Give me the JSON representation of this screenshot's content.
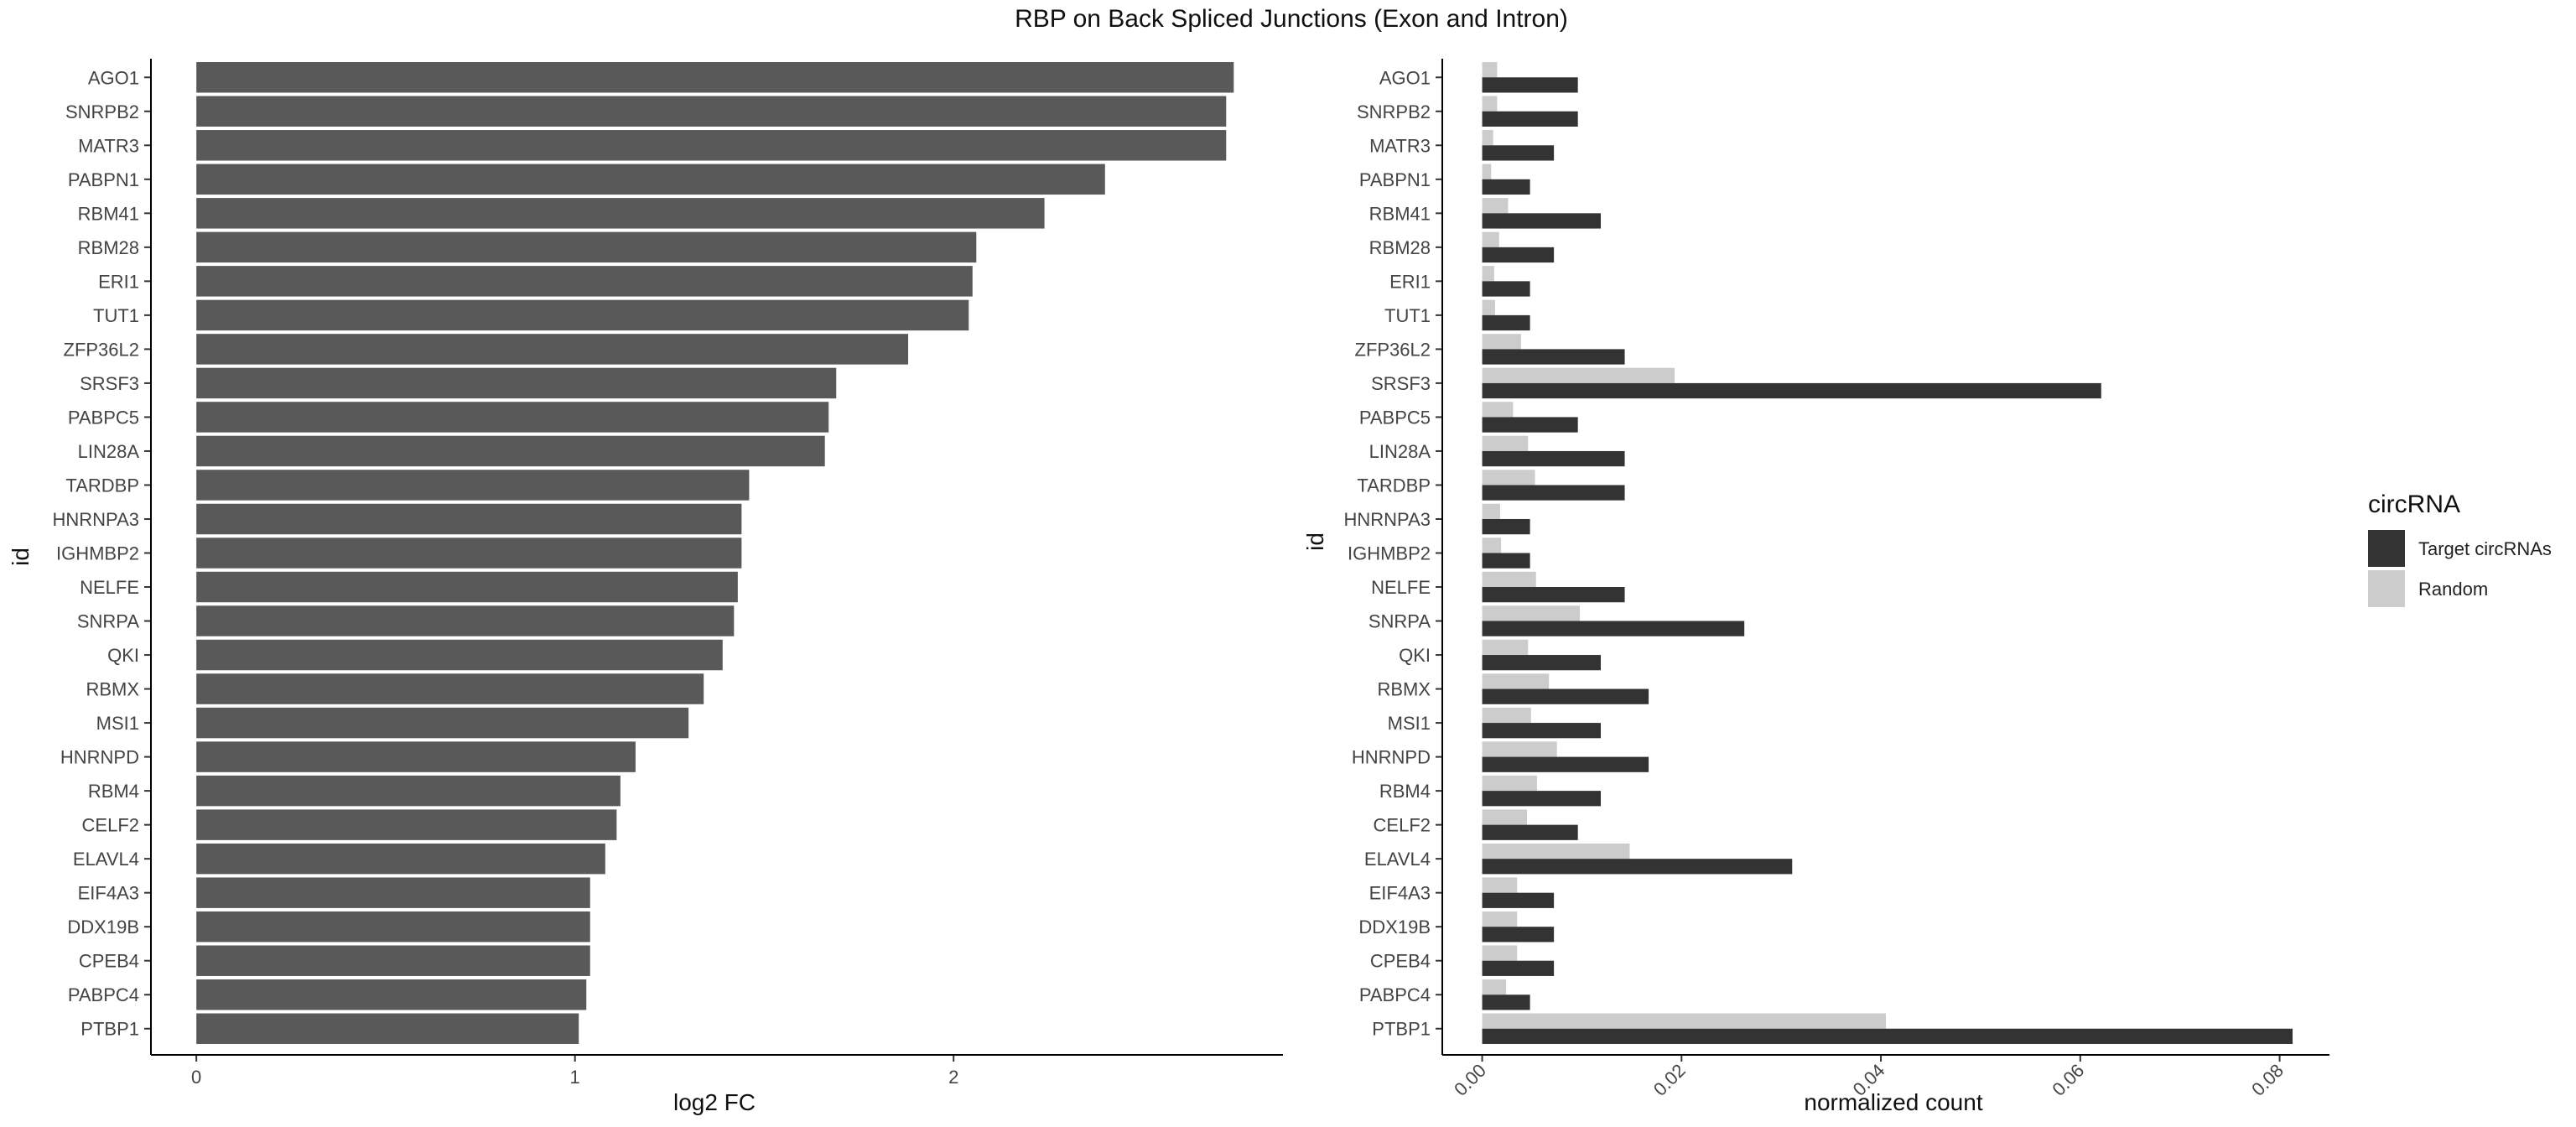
{
  "title": "RBP on Back Spliced Junctions (Exon and Intron)",
  "chart_data": [
    {
      "type": "bar",
      "orientation": "horizontal",
      "xlabel": "log2 FC",
      "ylabel": "id",
      "xlim": [
        -0.12,
        2.87
      ],
      "xticks": [
        0,
        1,
        2
      ],
      "grid": false,
      "color": "#595959",
      "categories": [
        "AGO1",
        "SNRPB2",
        "MATR3",
        "PABPN1",
        "RBM41",
        "RBM28",
        "ERI1",
        "TUT1",
        "ZFP36L2",
        "SRSF3",
        "PABPC5",
        "LIN28A",
        "TARDBP",
        "HNRNPA3",
        "IGHMBP2",
        "NELFE",
        "SNRPA",
        "QKI",
        "RBMX",
        "MSI1",
        "HNRNPD",
        "RBM4",
        "CELF2",
        "ELAVL4",
        "EIF4A3",
        "DDX19B",
        "CPEB4",
        "PABPC4",
        "PTBP1"
      ],
      "values": [
        2.74,
        2.72,
        2.72,
        2.4,
        2.24,
        2.06,
        2.05,
        2.04,
        1.88,
        1.69,
        1.67,
        1.66,
        1.46,
        1.44,
        1.44,
        1.43,
        1.42,
        1.39,
        1.34,
        1.3,
        1.16,
        1.12,
        1.11,
        1.08,
        1.04,
        1.04,
        1.04,
        1.03,
        1.01
      ]
    },
    {
      "type": "bar",
      "orientation": "horizontal",
      "xlabel": "normalized count",
      "ylabel": "id",
      "xlim": [
        -0.004,
        0.085
      ],
      "xticks": [
        0.0,
        0.02,
        0.04,
        0.06,
        0.08
      ],
      "xtick_labels": [
        "0.00",
        "0.02",
        "0.04",
        "0.06",
        "0.08"
      ],
      "grid": false,
      "categories": [
        "AGO1",
        "SNRPB2",
        "MATR3",
        "PABPN1",
        "RBM41",
        "RBM28",
        "ERI1",
        "TUT1",
        "ZFP36L2",
        "SRSF3",
        "PABPC5",
        "LIN28A",
        "TARDBP",
        "HNRNPA3",
        "IGHMBP2",
        "NELFE",
        "SNRPA",
        "QKI",
        "RBMX",
        "MSI1",
        "HNRNPD",
        "RBM4",
        "CELF2",
        "ELAVL4",
        "EIF4A3",
        "DDX19B",
        "CPEB4",
        "PABPC4",
        "PTBP1"
      ],
      "series": [
        {
          "name": "Target circRNAs",
          "color": "#333333",
          "values": [
            0.0096,
            0.0096,
            0.0072,
            0.0048,
            0.0119,
            0.0072,
            0.0048,
            0.0048,
            0.0143,
            0.0621,
            0.0096,
            0.0143,
            0.0143,
            0.0048,
            0.0048,
            0.0143,
            0.0263,
            0.0119,
            0.0167,
            0.0119,
            0.0167,
            0.0119,
            0.0096,
            0.0311,
            0.0072,
            0.0072,
            0.0072,
            0.0048,
            0.0813
          ]
        },
        {
          "name": "Random",
          "color": "#cccccc",
          "values": [
            0.0015,
            0.0015,
            0.0011,
            0.0009,
            0.0026,
            0.0017,
            0.0012,
            0.0013,
            0.0039,
            0.0193,
            0.0031,
            0.0046,
            0.0053,
            0.0018,
            0.0019,
            0.0054,
            0.0098,
            0.0046,
            0.0067,
            0.0049,
            0.0075,
            0.0055,
            0.0045,
            0.0148,
            0.0035,
            0.0035,
            0.0035,
            0.0024,
            0.0405
          ]
        }
      ],
      "legend": {
        "title": "circRNA",
        "position": "right"
      }
    }
  ]
}
